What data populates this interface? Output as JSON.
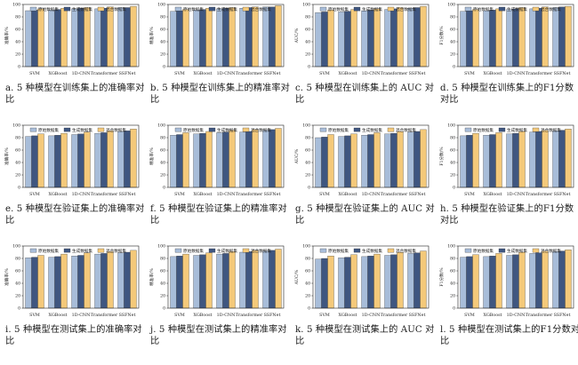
{
  "colors": {
    "series1": "#a8bdd9",
    "series2": "#3f5680",
    "series3": "#f4c97a",
    "frame": "#222222",
    "grid": "#d9d9d9"
  },
  "chart_data": [
    {
      "type": "bar",
      "caption": "a. 5 种模型在训练集上的准确率对比",
      "ylabel": "准确率/%",
      "ylim": [
        0,
        100
      ],
      "yticks": [
        0,
        20,
        40,
        60,
        80,
        100
      ],
      "legend_position": "top-center",
      "categories": [
        "SVM",
        "XGBoost",
        "1D-CNN",
        "Transformer",
        "SSFNet"
      ],
      "series": [
        {
          "name": "原始数据集",
          "values": [
            90,
            91,
            93,
            93,
            95
          ]
        },
        {
          "name": "生成数据集",
          "values": [
            91,
            92,
            94,
            94,
            95
          ]
        },
        {
          "name": "混合数据集",
          "values": [
            93,
            94,
            95,
            96,
            97
          ]
        }
      ]
    },
    {
      "type": "bar",
      "caption": "b. 5 种模型在训练集上的精准率对比",
      "ylabel": "精准率/%",
      "ylim": [
        0,
        100
      ],
      "yticks": [
        0,
        20,
        40,
        60,
        80,
        100
      ],
      "legend_position": "top-center",
      "categories": [
        "SVM",
        "XGBoost",
        "1D-CNN",
        "Transformer",
        "SSFNet"
      ],
      "series": [
        {
          "name": "原始数据集",
          "values": [
            89,
            91,
            93,
            94,
            96
          ]
        },
        {
          "name": "生成数据集",
          "values": [
            90,
            92,
            94,
            95,
            96
          ]
        },
        {
          "name": "混合数据集",
          "values": [
            92,
            94,
            95,
            96,
            98
          ]
        }
      ]
    },
    {
      "type": "bar",
      "caption": "c. 5 种模型在训练集上的 AUC 对比",
      "ylabel": "AUC/%",
      "ylim": [
        0,
        100
      ],
      "yticks": [
        0,
        20,
        40,
        60,
        80,
        100
      ],
      "legend_position": "top-center",
      "categories": [
        "SVM",
        "XGBoost",
        "1D-CNN",
        "Transformer",
        "SSFNet"
      ],
      "series": [
        {
          "name": "原始数据集",
          "values": [
            87,
            88,
            90,
            92,
            94
          ]
        },
        {
          "name": "生成数据集",
          "values": [
            88,
            89,
            91,
            93,
            95
          ]
        },
        {
          "name": "混合数据集",
          "values": [
            91,
            92,
            93,
            95,
            97
          ]
        }
      ]
    },
    {
      "type": "bar",
      "caption": "d. 5 种模型在训练集上的F1分数对比",
      "ylabel": "F1分数/%",
      "ylim": [
        0,
        100
      ],
      "yticks": [
        0,
        20,
        40,
        60,
        80,
        100
      ],
      "legend_position": "top-center",
      "categories": [
        "SVM",
        "XGBoost",
        "1D-CNN",
        "Transformer",
        "SSFNet"
      ],
      "series": [
        {
          "name": "原始数据集",
          "values": [
            89,
            90,
            92,
            93,
            95
          ]
        },
        {
          "name": "生成数据集",
          "values": [
            90,
            91,
            93,
            94,
            96
          ]
        },
        {
          "name": "混合数据集",
          "values": [
            92,
            93,
            95,
            96,
            97
          ]
        }
      ]
    },
    {
      "type": "bar",
      "caption": "e. 5 种模型在验证集上的准确率对比",
      "ylabel": "准确率/%",
      "ylim": [
        0,
        100
      ],
      "yticks": [
        0,
        20,
        40,
        60,
        80,
        100
      ],
      "legend_position": "top-center",
      "categories": [
        "SVM",
        "XGBoost",
        "1D-CNN",
        "Transformer",
        "SSFNet"
      ],
      "series": [
        {
          "name": "原始数据集",
          "values": [
            82,
            83,
            85,
            87,
            90
          ]
        },
        {
          "name": "生成数据集",
          "values": [
            83,
            84,
            86,
            88,
            91
          ]
        },
        {
          "name": "混合数据集",
          "values": [
            86,
            87,
            89,
            91,
            94
          ]
        }
      ]
    },
    {
      "type": "bar",
      "caption": "f. 5 种模型在验证集上的精准率对比",
      "ylabel": "精准率/%",
      "ylim": [
        0,
        100
      ],
      "yticks": [
        0,
        20,
        40,
        60,
        80,
        100
      ],
      "legend_position": "top-center",
      "categories": [
        "SVM",
        "XGBoost",
        "1D-CNN",
        "Transformer",
        "SSFNet"
      ],
      "series": [
        {
          "name": "原始数据集",
          "values": [
            84,
            86,
            88,
            89,
            92
          ]
        },
        {
          "name": "生成数据集",
          "values": [
            85,
            87,
            89,
            90,
            93
          ]
        },
        {
          "name": "混合数据集",
          "values": [
            88,
            90,
            92,
            93,
            95
          ]
        }
      ]
    },
    {
      "type": "bar",
      "caption": "g. 5 种模型在验证集上的 AUC 对比",
      "ylabel": "AUC/%",
      "ylim": [
        0,
        100
      ],
      "yticks": [
        0,
        20,
        40,
        60,
        80,
        100
      ],
      "legend_position": "top-center",
      "categories": [
        "SVM",
        "XGBoost",
        "1D-CNN",
        "Transformer",
        "SSFNet"
      ],
      "series": [
        {
          "name": "原始数据集",
          "values": [
            80,
            82,
            84,
            86,
            89
          ]
        },
        {
          "name": "生成数据集",
          "values": [
            81,
            83,
            85,
            87,
            90
          ]
        },
        {
          "name": "混合数据集",
          "values": [
            85,
            86,
            88,
            90,
            93
          ]
        }
      ]
    },
    {
      "type": "bar",
      "caption": "h. 5 种模型在验证集上的F1分数对比",
      "ylabel": "F1分数/%",
      "ylim": [
        0,
        100
      ],
      "yticks": [
        0,
        20,
        40,
        60,
        80,
        100
      ],
      "legend_position": "top-center",
      "categories": [
        "SVM",
        "XGBoost",
        "1D-CNN",
        "Transformer",
        "SSFNet"
      ],
      "series": [
        {
          "name": "原始数据集",
          "values": [
            83,
            84,
            86,
            89,
            91
          ]
        },
        {
          "name": "生成数据集",
          "values": [
            84,
            85,
            87,
            90,
            92
          ]
        },
        {
          "name": "混合数据集",
          "values": [
            87,
            88,
            90,
            92,
            94
          ]
        }
      ]
    },
    {
      "type": "bar",
      "caption": "i. 5 种模型在测试集上的准确率对比",
      "ylabel": "准确率/%",
      "ylim": [
        0,
        100
      ],
      "yticks": [
        0,
        20,
        40,
        60,
        80,
        100
      ],
      "legend_position": "top-center",
      "categories": [
        "SVM",
        "XGBoost",
        "1D-CNN",
        "Transformer",
        "SSFNet"
      ],
      "series": [
        {
          "name": "原始数据集",
          "values": [
            81,
            82,
            84,
            87,
            89
          ]
        },
        {
          "name": "生成数据集",
          "values": [
            82,
            83,
            85,
            88,
            90
          ]
        },
        {
          "name": "混合数据集",
          "values": [
            85,
            87,
            89,
            91,
            93
          ]
        }
      ]
    },
    {
      "type": "bar",
      "caption": "j. 5 种模型在测试集上的精准率对比",
      "ylabel": "精准率/%",
      "ylim": [
        0,
        100
      ],
      "yticks": [
        0,
        20,
        40,
        60,
        80,
        100
      ],
      "legend_position": "top-center",
      "categories": [
        "SVM",
        "XGBoost",
        "1D-CNN",
        "Transformer",
        "SSFNet"
      ],
      "series": [
        {
          "name": "原始数据集",
          "values": [
            83,
            85,
            87,
            90,
            92
          ]
        },
        {
          "name": "生成数据集",
          "values": [
            84,
            86,
            88,
            91,
            93
          ]
        },
        {
          "name": "混合数据集",
          "values": [
            87,
            89,
            91,
            93,
            95
          ]
        }
      ]
    },
    {
      "type": "bar",
      "caption": "k. 5 种模型在测试集上的 AUC 对比",
      "ylabel": "AUC/%",
      "ylim": [
        0,
        100
      ],
      "yticks": [
        0,
        20,
        40,
        60,
        80,
        100
      ],
      "legend_position": "top-center",
      "categories": [
        "SVM",
        "XGBoost",
        "1D-CNN",
        "Transformer",
        "SSFNet"
      ],
      "series": [
        {
          "name": "原始数据集",
          "values": [
            79,
            81,
            83,
            85,
            88
          ]
        },
        {
          "name": "生成数据集",
          "values": [
            80,
            82,
            84,
            86,
            89
          ]
        },
        {
          "name": "混合数据集",
          "values": [
            84,
            86,
            87,
            90,
            92
          ]
        }
      ]
    },
    {
      "type": "bar",
      "caption": "l. 5 种模型在测试集上的F1分数对比",
      "ylabel": "F1分数/%",
      "ylim": [
        0,
        100
      ],
      "yticks": [
        0,
        20,
        40,
        60,
        80,
        100
      ],
      "legend_position": "top-center",
      "categories": [
        "SVM",
        "XGBoost",
        "1D-CNN",
        "Transformer",
        "SSFNet"
      ],
      "series": [
        {
          "name": "原始数据集",
          "values": [
            82,
            83,
            85,
            88,
            91
          ]
        },
        {
          "name": "生成数据集",
          "values": [
            83,
            84,
            86,
            89,
            92
          ]
        },
        {
          "name": "混合数据集",
          "values": [
            86,
            88,
            90,
            92,
            94
          ]
        }
      ]
    }
  ]
}
